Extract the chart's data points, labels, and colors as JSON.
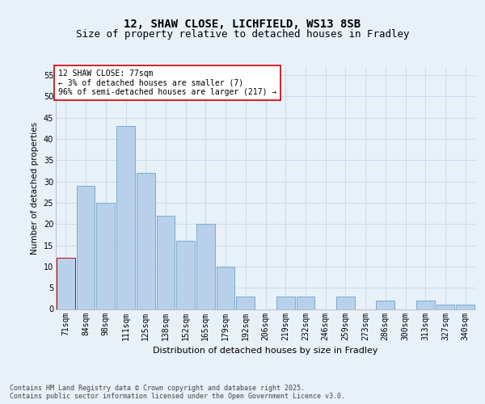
{
  "title1": "12, SHAW CLOSE, LICHFIELD, WS13 8SB",
  "title2": "Size of property relative to detached houses in Fradley",
  "xlabel": "Distribution of detached houses by size in Fradley",
  "ylabel": "Number of detached properties",
  "categories": [
    "71sqm",
    "84sqm",
    "98sqm",
    "111sqm",
    "125sqm",
    "138sqm",
    "152sqm",
    "165sqm",
    "179sqm",
    "192sqm",
    "206sqm",
    "219sqm",
    "232sqm",
    "246sqm",
    "259sqm",
    "273sqm",
    "286sqm",
    "300sqm",
    "313sqm",
    "327sqm",
    "340sqm"
  ],
  "values": [
    12,
    29,
    25,
    43,
    32,
    22,
    16,
    20,
    10,
    3,
    0,
    3,
    3,
    0,
    3,
    0,
    2,
    0,
    2,
    1,
    1
  ],
  "bar_color": "#b8d0ea",
  "bar_edge_color": "#7aacce",
  "highlight_edge_color": "#cc0000",
  "annotation_box_text": "12 SHAW CLOSE: 77sqm\n← 3% of detached houses are smaller (7)\n96% of semi-detached houses are larger (217) →",
  "annotation_box_color": "#ffffff",
  "annotation_box_edge_color": "#cc0000",
  "ylim": [
    0,
    57
  ],
  "yticks": [
    0,
    5,
    10,
    15,
    20,
    25,
    30,
    35,
    40,
    45,
    50,
    55
  ],
  "grid_color": "#c5d8ec",
  "background_color": "#e8f0f8",
  "footer_text": "Contains HM Land Registry data © Crown copyright and database right 2025.\nContains public sector information licensed under the Open Government Licence v3.0.",
  "title1_fontsize": 10,
  "title2_fontsize": 9,
  "xlabel_fontsize": 8,
  "ylabel_fontsize": 7.5,
  "tick_fontsize": 7,
  "annotation_fontsize": 7,
  "footer_fontsize": 6
}
